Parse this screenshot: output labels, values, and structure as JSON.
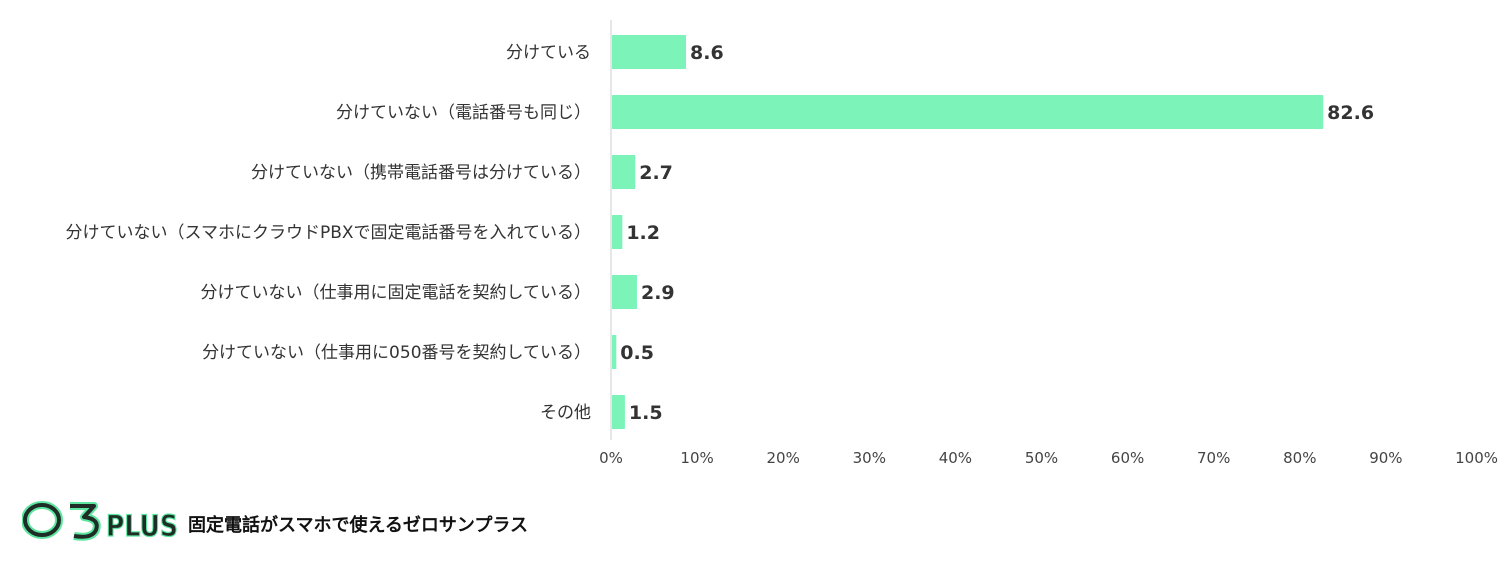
{
  "chart_data": {
    "type": "bar",
    "orientation": "horizontal",
    "categories": [
      "分けている",
      "分けていない（電話番号も同じ）",
      "分けていない（携帯電話番号は分けている）",
      "分けていない（スマホにクラウドPBXで固定電話番号を入れている）",
      "分けていない（仕事用に固定電話を契約している）",
      "分けていない（仕事用に050番号を契約している）",
      "その他"
    ],
    "values": [
      8.6,
      82.6,
      2.7,
      1.2,
      2.9,
      0.5,
      1.5
    ],
    "value_labels": [
      "8.6",
      "82.6",
      "2.7",
      "1.2",
      "2.9",
      "0.5",
      "1.5"
    ],
    "xlim": [
      0,
      100
    ],
    "x_ticks": [
      "0%",
      "10%",
      "20%",
      "30%",
      "40%",
      "50%",
      "60%",
      "70%",
      "80%",
      "90%",
      "100%"
    ],
    "bar_color": "#7cf4b9",
    "grid": false
  },
  "brand": {
    "logo_text": "03PLUS",
    "tagline": "固定電話がスマホで使えるゼロサンプラス",
    "logo_colors": {
      "fill": "#1f2d27",
      "outline": "#5ee6a0"
    }
  }
}
